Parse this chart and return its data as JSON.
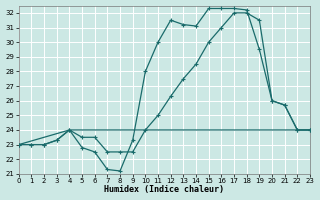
{
  "xlabel": "Humidex (Indice chaleur)",
  "bg_color": "#cce8e4",
  "grid_color": "#aed8d0",
  "line_color": "#1a6b6b",
  "xlim": [
    0,
    23
  ],
  "ylim": [
    21,
    32.5
  ],
  "xticks": [
    0,
    1,
    2,
    3,
    4,
    5,
    6,
    7,
    8,
    9,
    10,
    11,
    12,
    13,
    14,
    15,
    16,
    17,
    18,
    19,
    20,
    21,
    22,
    23
  ],
  "yticks": [
    21,
    22,
    23,
    24,
    25,
    26,
    27,
    28,
    29,
    30,
    31,
    32
  ],
  "line1_x": [
    0,
    1,
    2,
    3,
    4,
    5,
    6,
    7,
    8,
    9,
    10,
    11,
    12,
    13,
    14,
    15,
    16,
    17,
    18,
    19,
    20,
    21,
    22,
    23
  ],
  "line1_y": [
    23,
    23,
    23,
    23.3,
    24,
    22.8,
    22.5,
    21.3,
    21.2,
    23.3,
    28,
    30,
    31.5,
    31.2,
    31.1,
    32.3,
    32.3,
    32.3,
    32.2,
    29.5,
    26.0,
    25.7,
    24.0,
    24.0
  ],
  "line2_x": [
    0,
    1,
    2,
    3,
    4,
    5,
    6,
    7,
    8,
    9,
    10,
    11,
    12,
    13,
    14,
    15,
    16,
    17,
    18,
    19,
    20,
    21,
    22,
    23
  ],
  "line2_y": [
    23,
    23,
    23,
    23.3,
    24.0,
    23.5,
    23.5,
    22.5,
    22.5,
    22.5,
    24,
    25,
    26.3,
    27.5,
    28.5,
    30,
    31,
    32,
    32,
    31.5,
    26,
    25.7,
    24,
    24
  ],
  "line3_x": [
    0,
    4,
    10,
    23
  ],
  "line3_y": [
    23,
    24,
    24,
    24
  ]
}
